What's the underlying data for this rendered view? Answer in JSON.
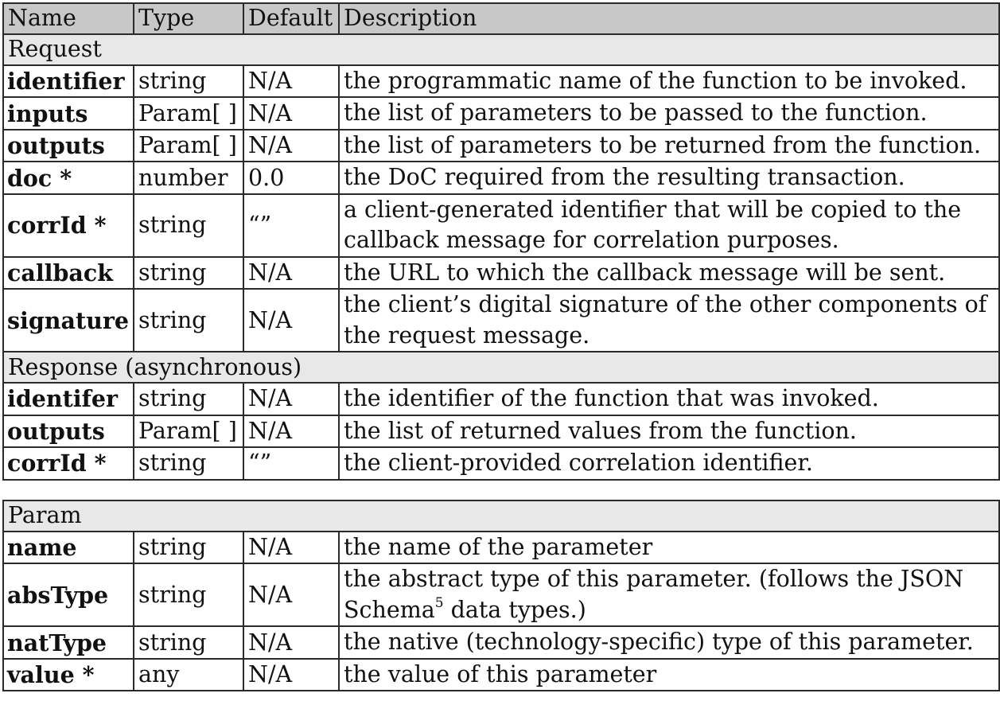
{
  "headers": {
    "name": "Name",
    "type": "Type",
    "default": "Default",
    "description": "Description"
  },
  "request": {
    "section_label": "Request",
    "rows": [
      {
        "name": "identifier",
        "type": "string",
        "default": "N/A",
        "description": "the programmatic name of the function to be invoked."
      },
      {
        "name": "inputs",
        "type": "Param[ ]",
        "default": "N/A",
        "description": "the list of parameters to be passed to the function."
      },
      {
        "name": "outputs",
        "type": "Param[ ]",
        "default": "N/A",
        "description": "the list of parameters to be returned from the function."
      },
      {
        "name": "doc *",
        "type": "number",
        "default": "0.0",
        "description": "the DoC required from the resulting transaction."
      },
      {
        "name": "corrId *",
        "type": "string",
        "default": "“”",
        "description": "a client-generated identifier that will be copied to the callback message for correlation purposes."
      },
      {
        "name": "callback",
        "type": "string",
        "default": "N/A",
        "description": "the URL to which the callback message will be sent."
      },
      {
        "name": "signature",
        "type": "string",
        "default": "N/A",
        "description": "the client’s digital signature of the other components of the request message."
      }
    ]
  },
  "response": {
    "section_label": "Response (asynchronous)",
    "rows": [
      {
        "name": "identifer",
        "type": "string",
        "default": "N/A",
        "description": "the identifier of the function that was invoked."
      },
      {
        "name": "outputs",
        "type": "Param[ ]",
        "default": "N/A",
        "description": "the list of returned values from the function."
      },
      {
        "name": "corrId *",
        "type": "string",
        "default": "“”",
        "description": "the client-provided correlation identifier."
      }
    ]
  },
  "param": {
    "section_label": "Param",
    "rows": [
      {
        "name": "name",
        "type": "string",
        "default": "N/A",
        "description": "the name of the parameter"
      },
      {
        "name": "absType",
        "type": "string",
        "default": "N/A",
        "description": "the abstract type of this parameter. (follows the JSON Schema",
        "footnote_mark": "5",
        "description_tail": " data types.)"
      },
      {
        "name": "natType",
        "type": "string",
        "default": "N/A",
        "description": "the native (technology-specific) type of this parameter."
      },
      {
        "name": "value *",
        "type": "any",
        "default": "N/A",
        "description": "the value of this parameter"
      }
    ]
  }
}
